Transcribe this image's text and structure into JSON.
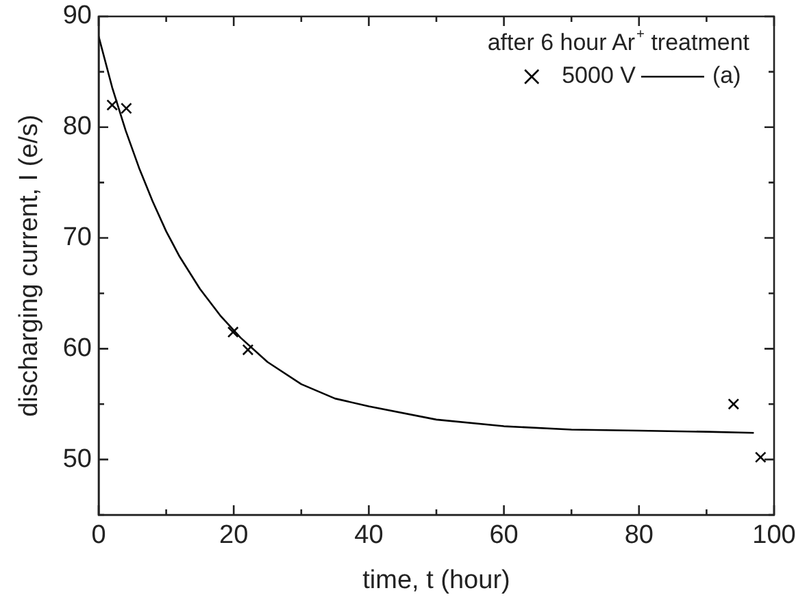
{
  "chart_data": {
    "type": "scatter",
    "xlabel": "time, t (hour)",
    "ylabel": "discharging current, I (e/s)",
    "legend_title": "after 6 hour Ar$^{+}$ treatment",
    "legend": "top right",
    "grid": false,
    "xlim": [
      0,
      100
    ],
    "xticks": [
      0,
      {
        "value": 10,
        "label": null
      },
      20,
      {
        "value": 30,
        "label": null
      },
      40,
      {
        "value": 50,
        "label": null
      },
      60,
      {
        "value": 70,
        "label": null
      },
      80,
      {
        "value": 90,
        "label": null
      },
      100
    ],
    "ylim": [
      45,
      90
    ],
    "yticks": [
      {
        "value": 45,
        "label": null
      },
      50,
      {
        "value": 55,
        "label": null
      },
      60,
      {
        "value": 65,
        "label": null
      },
      70,
      {
        "value": 75,
        "label": null
      },
      80,
      {
        "value": 85,
        "label": null
      },
      90
    ],
    "series": [
      {
        "name": "5000 V",
        "marker": "cross",
        "color": "#000000",
        "x": [
          2.0,
          4.1,
          19.9,
          22.1,
          94.0,
          98.0
        ],
        "values": [
          82.0,
          81.7,
          61.5,
          59.9,
          55.0,
          50.2
        ]
      },
      {
        "name": "(a)",
        "type": "line",
        "marker": "none",
        "line_style": "solid",
        "color": "#000000",
        "x": [
          0,
          2,
          4,
          6,
          8,
          10,
          12,
          15,
          18,
          21,
          25,
          30,
          35,
          40,
          50,
          60,
          70,
          80,
          90,
          97
        ],
        "values": [
          88.2,
          83.6,
          79.7,
          76.3,
          73.3,
          70.6,
          68.3,
          65.4,
          63.0,
          61.0,
          58.8,
          56.8,
          55.5,
          54.8,
          53.6,
          53.0,
          52.7,
          52.6,
          52.5,
          52.4
        ]
      }
    ]
  }
}
